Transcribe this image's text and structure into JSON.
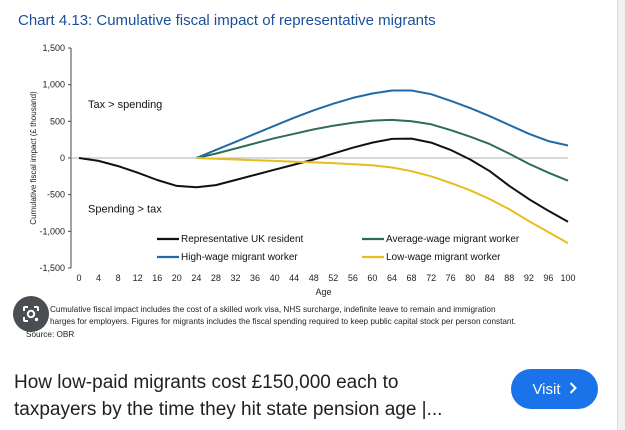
{
  "chart_title": "Chart 4.13: Cumulative fiscal impact of representative migrants",
  "chart_data": {
    "type": "line",
    "title": "Chart 4.13: Cumulative fiscal impact of representative migrants",
    "xlabel": "Age",
    "ylabel": "Cumulative fiscal impact (£ thousand)",
    "xlim": [
      0,
      100
    ],
    "ylim": [
      -1500,
      1500
    ],
    "x_ticks": [
      0,
      4,
      8,
      12,
      16,
      20,
      24,
      28,
      32,
      36,
      40,
      44,
      48,
      52,
      56,
      60,
      64,
      68,
      72,
      76,
      80,
      84,
      88,
      92,
      96,
      100
    ],
    "y_ticks": [
      1500,
      1000,
      500,
      0,
      -500,
      -1000,
      -1500
    ],
    "y_tick_labels": [
      "1,500",
      "1,000",
      "500",
      "0",
      "-500",
      "-1,000",
      "-1,500"
    ],
    "annotations": [
      "Tax > spending",
      "Spending > tax"
    ],
    "legend_placement": "bottom",
    "grid": false,
    "series": [
      {
        "name": "Representative UK resident",
        "color": "#111111",
        "x": [
          0,
          4,
          8,
          12,
          16,
          20,
          24,
          28,
          32,
          36,
          40,
          44,
          48,
          52,
          56,
          60,
          64,
          68,
          72,
          76,
          80,
          84,
          88,
          92,
          96,
          100
        ],
        "y": [
          0,
          -40,
          -110,
          -200,
          -300,
          -380,
          -400,
          -370,
          -300,
          -230,
          -160,
          -90,
          -20,
          60,
          140,
          210,
          260,
          265,
          210,
          110,
          -20,
          -180,
          -380,
          -560,
          -720,
          -870
        ]
      },
      {
        "name": "Average-wage migrant worker",
        "color": "#2e6b58",
        "x": [
          24,
          28,
          32,
          36,
          40,
          44,
          48,
          52,
          56,
          60,
          64,
          68,
          72,
          76,
          80,
          84,
          88,
          92,
          96,
          100
        ],
        "y": [
          0,
          60,
          130,
          200,
          270,
          330,
          390,
          440,
          480,
          510,
          520,
          500,
          460,
          380,
          290,
          190,
          60,
          -80,
          -200,
          -310
        ]
      },
      {
        "name": "High-wage migrant worker",
        "color": "#1f6aa8",
        "x": [
          24,
          28,
          32,
          36,
          40,
          44,
          48,
          52,
          56,
          60,
          64,
          68,
          72,
          76,
          80,
          84,
          88,
          92,
          96,
          100
        ],
        "y": [
          0,
          110,
          220,
          330,
          440,
          550,
          650,
          740,
          820,
          880,
          920,
          920,
          870,
          780,
          680,
          570,
          450,
          330,
          230,
          170
        ]
      },
      {
        "name": "Low-wage migrant worker",
        "color": "#e8bc1c",
        "x": [
          24,
          28,
          32,
          36,
          40,
          44,
          48,
          52,
          56,
          60,
          64,
          68,
          72,
          76,
          80,
          84,
          88,
          92,
          96,
          100
        ],
        "y": [
          0,
          -10,
          -20,
          -30,
          -40,
          -50,
          -60,
          -70,
          -85,
          -100,
          -130,
          -180,
          -250,
          -340,
          -440,
          -560,
          -700,
          -860,
          -1010,
          -1160
        ]
      }
    ]
  },
  "footnote_lines": [
    "Cumulative fiscal impact includes the cost of a skilled work visa, NHS surcharge, indefinite leave to remain and immigration",
    "harges for employers. Figures for migrants includes the fiscal spending required to keep public capital stock per person constant."
  ],
  "source_text": "Source: OBR",
  "lens_icon": "google-lens-icon",
  "result": {
    "title": "How low-paid migrants cost £150,000 each to taxpayers by the time they hit state pension age |...",
    "visit_label": "Visit",
    "visit_icon": "chevron-right-icon",
    "visit_color": "#1a73e8"
  }
}
